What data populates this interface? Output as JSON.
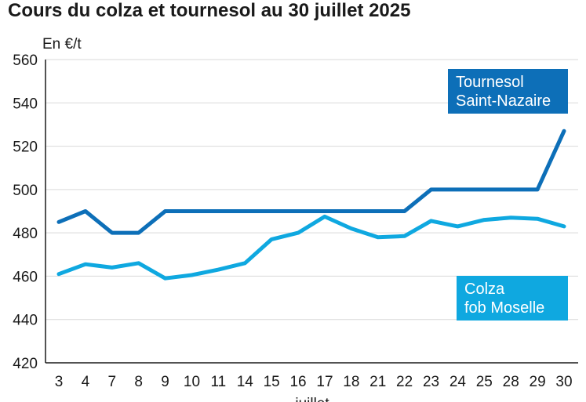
{
  "chart_data": {
    "type": "line",
    "title": "Cours du colza et tournesol au 30 juillet 2025",
    "ylabel": "En €/t",
    "xlabel": "juillet",
    "ylim": [
      420,
      560
    ],
    "yticks": [
      420,
      440,
      460,
      480,
      500,
      520,
      540,
      560
    ],
    "grid": "horizontal",
    "categories": [
      "3",
      "4",
      "7",
      "8",
      "9",
      "10",
      "11",
      "14",
      "15",
      "16",
      "17",
      "18",
      "21",
      "22",
      "23",
      "24",
      "25",
      "28",
      "29",
      "30"
    ],
    "series": [
      {
        "name_lines": [
          "Tournesol",
          "Saint-Nazaire"
        ],
        "color": "#0d6fb8",
        "values": [
          485,
          490,
          480,
          480,
          490,
          490,
          490,
          490,
          490,
          490,
          490,
          490,
          490,
          490,
          500,
          500,
          500,
          500,
          500,
          527
        ]
      },
      {
        "name_lines": [
          "Colza",
          "fob Moselle"
        ],
        "color": "#0fa8e0",
        "values": [
          461,
          465.5,
          464,
          466,
          459,
          460.5,
          463,
          466,
          477,
          480,
          487.5,
          482,
          478,
          478.5,
          485.5,
          483,
          486,
          487,
          486.5,
          483
        ]
      }
    ]
  }
}
